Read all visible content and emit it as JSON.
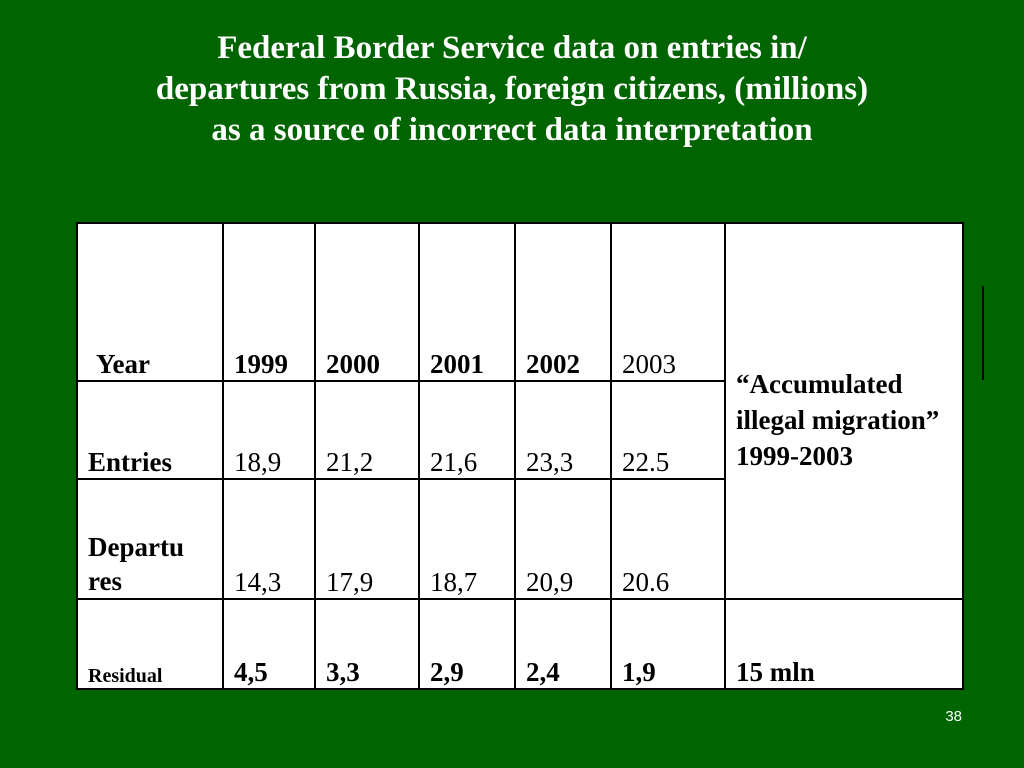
{
  "title": {
    "line1": "Federal Border Service data on entries in/",
    "line2": "departures from Russia, foreign citizens, (millions)",
    "line3": "as a source of incorrect data interpretation"
  },
  "table": {
    "header_label": "Year",
    "years": [
      "1999",
      "2000",
      "2001",
      "2002",
      "2003"
    ],
    "accumulated_note": "“Accumulated illegal migration” 1999-2003",
    "rows": {
      "entries": {
        "label": "Entries",
        "values": [
          "18,9",
          "21,2",
          "21,6",
          "23,3",
          "22.5"
        ]
      },
      "departures": {
        "label": "Departures",
        "label_line1": "Departu",
        "label_line2": "res",
        "values": [
          "14,3",
          "17,9",
          "18,7",
          "20,9",
          "20.6"
        ]
      },
      "residual": {
        "label": "Residual",
        "values": [
          "4,5",
          "3,3",
          "2,9",
          "2,4",
          "1,9"
        ],
        "total": "15 mln"
      }
    }
  },
  "slide_number": "38",
  "colors": {
    "background": "#006400",
    "title": "#ffffff",
    "row_label": "#800080",
    "year": "#0000cc",
    "residual": "#ff0000"
  }
}
